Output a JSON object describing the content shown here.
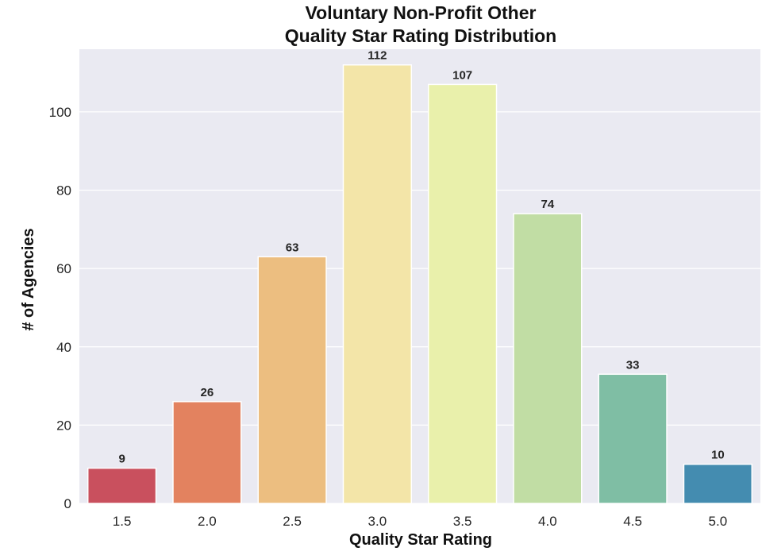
{
  "chart_data": {
    "type": "bar",
    "title_line1": "Voluntary Non-Profit Other",
    "title_line2": "Quality Star Rating Distribution",
    "xlabel": "Quality Star Rating",
    "ylabel": "# of Agencies",
    "categories": [
      "1.5",
      "2.0",
      "2.5",
      "3.0",
      "3.5",
      "4.0",
      "4.5",
      "5.0"
    ],
    "values": [
      9,
      26,
      63,
      112,
      107,
      74,
      33,
      10
    ],
    "data_labels": [
      "9",
      "26",
      "63",
      "112",
      "107",
      "74",
      "33",
      "10"
    ],
    "colors": [
      "#c9505e",
      "#e3825f",
      "#ecbe80",
      "#f3e5a8",
      "#e9f0ab",
      "#c1dda4",
      "#7fbea4",
      "#448cb0"
    ],
    "ylim": [
      0,
      116
    ],
    "yticks": [
      0,
      20,
      40,
      60,
      80,
      100
    ],
    "ytick_labels": [
      "0",
      "20",
      "40",
      "60",
      "80",
      "100"
    ],
    "grid": true,
    "legend": "none",
    "plot_background": "#eaeaf2",
    "grid_color": "#ffffff"
  }
}
